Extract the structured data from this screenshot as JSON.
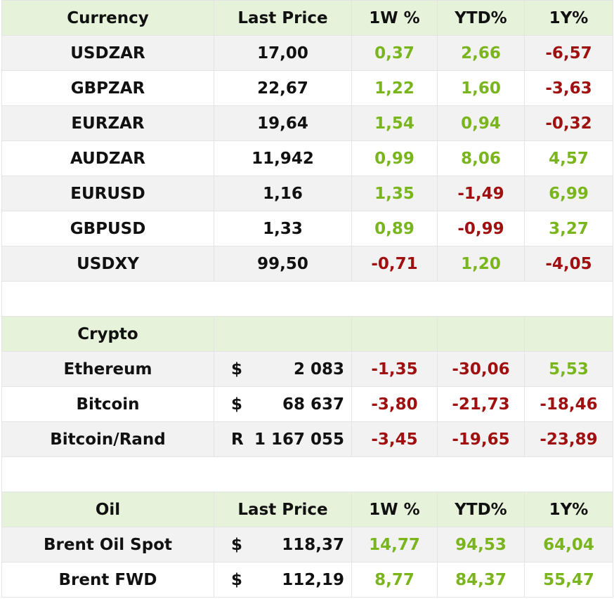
{
  "colors": {
    "header_bg": "#e7f2da",
    "row_alt_bg": "#f2f2f2",
    "positive": "#7ab51d",
    "negative": "#a01010"
  },
  "currency": {
    "headers": [
      "Currency",
      "Last Price",
      "1W %",
      "YTD%",
      "1Y%"
    ],
    "rows": [
      {
        "name": "USDZAR",
        "price": "17,00",
        "w1": "0,37",
        "ytd": "2,66",
        "y1": "-6,57"
      },
      {
        "name": "GBPZAR",
        "price": "22,67",
        "w1": "1,22",
        "ytd": "1,60",
        "y1": "-3,63"
      },
      {
        "name": "EURZAR",
        "price": "19,64",
        "w1": "1,54",
        "ytd": "0,94",
        "y1": "-0,32"
      },
      {
        "name": "AUDZAR",
        "price": "11,942",
        "w1": "0,99",
        "ytd": "8,06",
        "y1": "4,57"
      },
      {
        "name": "EURUSD",
        "price": "1,16",
        "w1": "1,35",
        "ytd": "-1,49",
        "y1": "6,99"
      },
      {
        "name": "GBPUSD",
        "price": "1,33",
        "w1": "0,89",
        "ytd": "-0,99",
        "y1": "3,27"
      },
      {
        "name": "USDXY",
        "price": "99,50",
        "w1": "-0,71",
        "ytd": "1,20",
        "y1": "-4,05"
      }
    ]
  },
  "crypto": {
    "title": "Crypto",
    "rows": [
      {
        "name": "Ethereum",
        "cur": "$",
        "price": "2 083",
        "w1": "-1,35",
        "ytd": "-30,06",
        "y1": "5,53"
      },
      {
        "name": "Bitcoin",
        "cur": "$",
        "price": "68 637",
        "w1": "-3,80",
        "ytd": "-21,73",
        "y1": "-18,46"
      },
      {
        "name": "Bitcoin/Rand",
        "cur": "R",
        "price": "1 167 055",
        "w1": "-3,45",
        "ytd": "-19,65",
        "y1": "-23,89"
      }
    ]
  },
  "oil": {
    "headers": [
      "Oil",
      "Last Price",
      "1W %",
      "YTD%",
      "1Y%"
    ],
    "rows": [
      {
        "name": "Brent Oil Spot",
        "cur": "$",
        "price": "118,37",
        "w1": "14,77",
        "ytd": "94,53",
        "y1": "64,04"
      },
      {
        "name": "Brent FWD",
        "cur": "$",
        "price": "112,19",
        "w1": "8,77",
        "ytd": "84,37",
        "y1": "55,47"
      }
    ]
  }
}
